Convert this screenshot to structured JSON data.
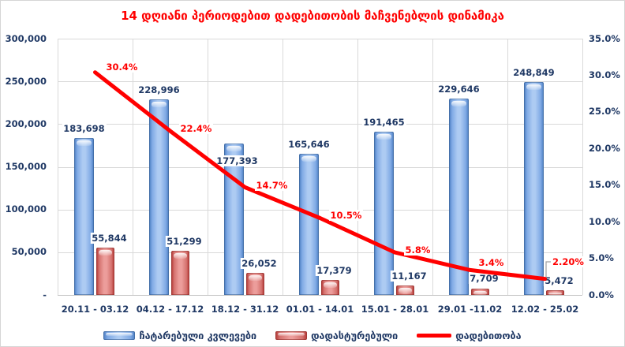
{
  "title": "14 დღიანი პერიოდებით დადებითობის მაჩვენებლის დინამიკა",
  "colors": {
    "title_text": "#FF0000",
    "axis_text": "#1F3864",
    "line_series": "#FF0000",
    "bar_blue_edge": "#5585C8",
    "bar_blue_center": "#ADCBF2",
    "bar_red_edge": "#C0504D",
    "bar_red_center": "#EC9D9B",
    "gridline": "#D9D9D9"
  },
  "left_axis": {
    "tick_labels": [
      "300,000",
      "250,000",
      "200,000",
      "150,000",
      "100,000",
      "50,000",
      "-"
    ]
  },
  "right_axis": {
    "tick_labels": [
      "35.0%",
      "30.0%",
      "25.0%",
      "20.0%",
      "15.0%",
      "10.0%",
      "5.0%",
      "0.0%"
    ]
  },
  "legend": {
    "items": [
      {
        "label": "ჩატარებული კვლევები",
        "swatch": "bar-blue"
      },
      {
        "label": "დადასტურებული",
        "swatch": "bar-red"
      },
      {
        "label": "დადებითობა",
        "swatch": "line-red"
      }
    ]
  },
  "chart_data": {
    "type": "combo-bar-line",
    "title": "14 დღიანი პერიოდებით დადებითობის მაჩვენებლის დინამიკა",
    "categories": [
      "20.11 - 03.12",
      "04.12 - 17.12",
      "18.12 - 31.12",
      "01.01 - 14.01",
      "15.01 - 28.01",
      "29.01 -11.02",
      "12.02 - 25.02"
    ],
    "series": [
      {
        "name": "ჩატარებული კვლევები",
        "type": "bar",
        "axis": "left",
        "values": [
          183698,
          228996,
          177393,
          165646,
          191465,
          229646,
          248849
        ],
        "data_labels": [
          "183,698",
          "228,996",
          "177,393",
          "165,646",
          "191,465",
          "229,646",
          "248,849"
        ]
      },
      {
        "name": "დადასტურებული",
        "type": "bar",
        "axis": "left",
        "values": [
          55844,
          51299,
          26052,
          17379,
          11167,
          7709,
          5472
        ],
        "data_labels": [
          "55,844",
          "51,299",
          "26,052",
          "17,379",
          "11,167",
          "7,709",
          "5,472"
        ]
      },
      {
        "name": "დადებითობა",
        "type": "line",
        "axis": "right",
        "values": [
          30.4,
          22.4,
          14.7,
          10.5,
          5.8,
          3.4,
          2.2
        ],
        "data_labels": [
          "30.4%",
          "22.4%",
          "14.7%",
          "10.5%",
          "5.8%",
          "3.4%",
          "2.20%"
        ]
      }
    ],
    "left_axis_range": [
      0,
      300000
    ],
    "left_axis_step": 50000,
    "right_axis_range": [
      0,
      35
    ],
    "right_axis_step": 5,
    "gridlines": true,
    "legend_position": "bottom"
  }
}
